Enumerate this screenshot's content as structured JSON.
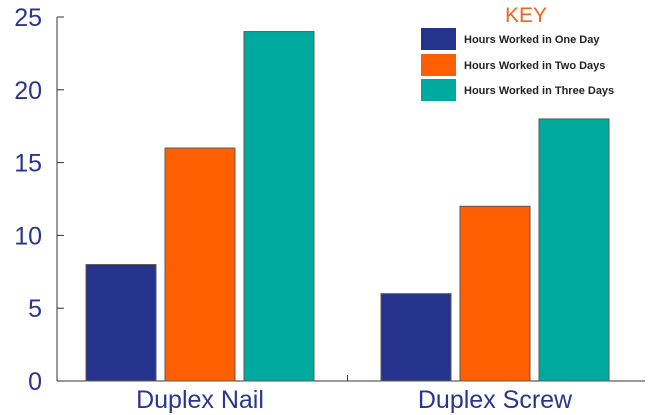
{
  "chart_data": {
    "type": "bar",
    "categories": [
      "Duplex Nail",
      "Duplex Screw"
    ],
    "series": [
      {
        "name": "Hours Worked in One Day",
        "color": "#26338c",
        "values": [
          8,
          6
        ]
      },
      {
        "name": "Hours Worked in Two Days",
        "color": "#ff5f00",
        "values": [
          16,
          12
        ]
      },
      {
        "name": "Hours Worked in Three Days",
        "color": "#00a99d",
        "values": [
          24,
          18
        ]
      }
    ],
    "title": "",
    "xlabel": "",
    "ylabel": "",
    "ylim": [
      0,
      25
    ],
    "yticks": [
      0,
      5,
      10,
      15,
      20,
      25
    ],
    "grid": false,
    "legend": {
      "title": "KEY",
      "placement": "top-right"
    },
    "colors": {
      "tick_text": "#2a3590",
      "key_title": "#f26522"
    }
  }
}
